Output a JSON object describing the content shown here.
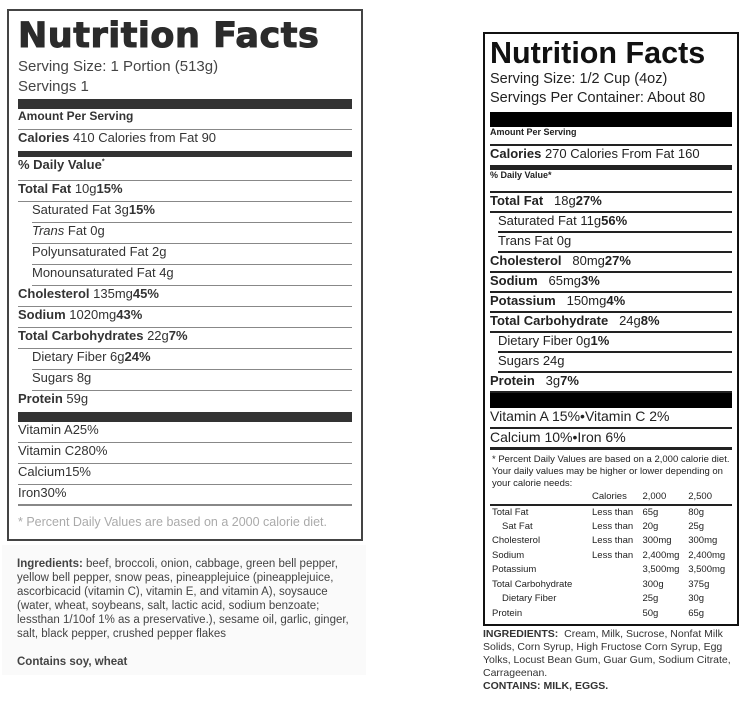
{
  "left": {
    "title": "Nutrition Facts",
    "serving_size": "Serving Size: 1 Portion (513g)",
    "servings": "Servings 1",
    "amount_per_serving": "Amount Per Serving",
    "calories_label": "Calories",
    "calories_value": "410",
    "calories_from_fat": "Calories from Fat 90",
    "daily_value_header": "% Daily Value",
    "nutrients": [
      {
        "name": "Total Fat",
        "amount": "10g",
        "pct": "15%",
        "bold": true
      },
      {
        "name": "Saturated Fat",
        "amount": "3g",
        "pct": "15%",
        "indent": true
      },
      {
        "name": "Trans",
        "amount": "Fat 0g",
        "pct": "",
        "indent": true,
        "italic": true
      },
      {
        "name": "Polyunsaturated Fat",
        "amount": "2g",
        "pct": "",
        "indent": true
      },
      {
        "name": "Monounsaturated Fat",
        "amount": "4g",
        "pct": "",
        "indent": true
      },
      {
        "name": "Cholesterol",
        "amount": "135mg",
        "pct": "45%",
        "bold": true
      },
      {
        "name": "Sodium",
        "amount": "1020mg",
        "pct": "43%",
        "bold": true
      },
      {
        "name": "Total Carbohydrates",
        "amount": "22g",
        "pct": "7%",
        "bold": true
      },
      {
        "name": "Dietary Fiber",
        "amount": "6g",
        "pct": "24%",
        "indent": true
      },
      {
        "name": "Sugars",
        "amount": "8g",
        "pct": "",
        "indent": true
      },
      {
        "name": "Protein",
        "amount": "59g",
        "pct": "",
        "bold": true
      }
    ],
    "vitamins": [
      {
        "name": "Vitamin A",
        "pct": "25%"
      },
      {
        "name": "Vitamin C",
        "pct": "280%"
      },
      {
        "name": "Calcium",
        "pct": "15%"
      },
      {
        "name": "Iron",
        "pct": "30%"
      }
    ],
    "footnote": "* Percent Daily Values are based on a 2000 calorie diet.",
    "ingredients_label": "Ingredients:",
    "ingredients": "beef, broccoli, onion, cabbage, green bell pepper, yellow bell pepper, snow peas, pineapplejuice (pineapplejuice, ascorbicacid (vitamin C), vitamin E, and vitamin A), soysauce (water, wheat, soybeans, salt, lactic acid, sodium benzoate; lessthan 1/10of 1% as a preservative.), sesame oil, garlic, ginger, salt, black pepper, crushed pepper flakes",
    "contains": "Contains soy, wheat"
  },
  "right": {
    "title": "Nutrition Facts",
    "serving_size": "Serving Size: 1/2 Cup (4oz)",
    "servings": "Servings Per Container:  About 80",
    "amount_per_serving": "Amount Per Serving",
    "calories_label": "Calories",
    "calories_value": "270",
    "calories_from_fat": "Calories From Fat 160",
    "daily_value_header": "% Daily Value*",
    "nutrients": [
      {
        "name": "Total Fat",
        "amount": "18g",
        "pct": "27%",
        "bold": true
      },
      {
        "name": "Saturated Fat",
        "amount": "11g",
        "pct": "56%",
        "indent": true
      },
      {
        "name": "Trans Fat",
        "amount": "0g",
        "pct": "",
        "indent": true
      },
      {
        "name": "Cholesterol",
        "amount": "80mg",
        "pct": "27%",
        "bold": true
      },
      {
        "name": "Sodium",
        "amount": "65mg",
        "pct": "3%",
        "bold": true
      },
      {
        "name": "Potassium",
        "amount": "150mg",
        "pct": "4%",
        "bold": true
      },
      {
        "name": "Total Carbohydrate",
        "amount": "24g",
        "pct": "8%",
        "bold": true
      },
      {
        "name": "Dietary Fiber",
        "amount": "0g",
        "pct": "1%",
        "indent": true
      },
      {
        "name": "Sugars",
        "amount": "24g",
        "pct": "",
        "indent": true
      },
      {
        "name": "Protein",
        "amount": "3g",
        "pct": "7%",
        "bold": true
      }
    ],
    "vitamin_rows": [
      {
        "a": "Vitamin A 15%",
        "b": "Vitamin C 2%"
      },
      {
        "a": "Calcium 10%",
        "b": "Iron 6%"
      }
    ],
    "footnote": "* Percent Daily Values are based on a 2,000 calorie diet. Your daily values may be higher or lower depending on your calorie needs:",
    "dv_table": {
      "header": [
        "",
        "Calories",
        "2,000",
        "2,500"
      ],
      "rows": [
        [
          "Total Fat",
          "Less than",
          "65g",
          "80g"
        ],
        [
          "Sat Fat",
          "Less than",
          "20g",
          "25g"
        ],
        [
          "Cholesterol",
          "Less than",
          "300mg",
          "300mg"
        ],
        [
          "Sodium",
          "Less than",
          "2,400mg",
          "2,400mg"
        ],
        [
          "Potassium",
          "",
          "3,500mg",
          "3,500mg"
        ],
        [
          "Total Carbohydrate",
          "",
          "300g",
          "375g"
        ],
        [
          "Dietary Fiber",
          "",
          "25g",
          "30g"
        ],
        [
          "Protein",
          "",
          "50g",
          "65g"
        ]
      ]
    },
    "ingredients_label": "INGREDIENTS:",
    "ingredients": "Cream, Milk, Sucrose, Nonfat Milk Solids, Corn Syrup, High Fructose Corn Syrup, Egg Yolks, Locust Bean Gum, Guar Gum, Sodium Citrate, Carrageenan.",
    "contains": "CONTAINS: MILK, EGGS."
  }
}
